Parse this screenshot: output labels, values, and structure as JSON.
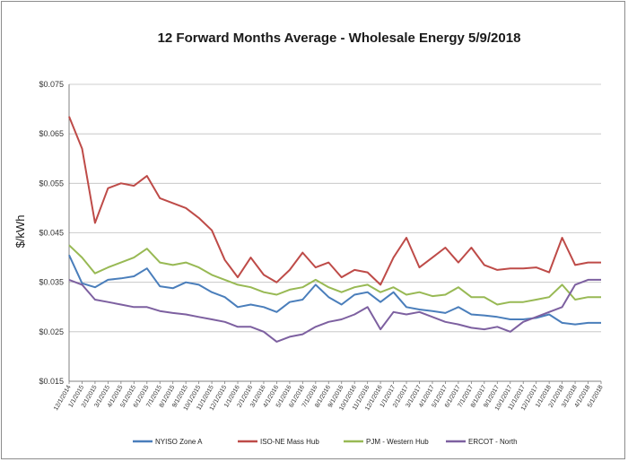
{
  "chart_data": {
    "type": "line",
    "title": "12 Forward Months Average - Wholesale Energy 5/9/2018",
    "xlabel": "",
    "ylabel": "$/kWh",
    "ylim": [
      0.015,
      0.075
    ],
    "yticks": [
      "$0.015",
      "$0.025",
      "$0.035",
      "$0.045",
      "$0.055",
      "$0.065",
      "$0.075"
    ],
    "grid": "horizontal",
    "legend_position": "bottom",
    "categories": [
      "12/1/2014",
      "1/1/2015",
      "2/1/2015",
      "3/1/2015",
      "4/1/2015",
      "5/1/2015",
      "6/1/2015",
      "7/1/2015",
      "8/1/2015",
      "9/1/2015",
      "10/1/2015",
      "11/1/2015",
      "12/1/2015",
      "1/1/2016",
      "2/1/2016",
      "3/1/2016",
      "4/1/2016",
      "5/1/2016",
      "6/1/2016",
      "7/1/2016",
      "8/1/2016",
      "9/1/2016",
      "10/1/2016",
      "11/1/2016",
      "12/1/2016",
      "1/1/2017",
      "2/1/2017",
      "3/1/2017",
      "4/1/2017",
      "5/1/2017",
      "6/1/2017",
      "7/1/2017",
      "8/1/2017",
      "9/1/2017",
      "10/1/2017",
      "11/1/2017",
      "12/1/2017",
      "1/1/2018",
      "2/1/2018",
      "3/1/2018",
      "4/1/2018",
      "5/1/2018"
    ],
    "series": [
      {
        "name": "NYISO Zone A",
        "color": "#4a7ebb",
        "values": [
          0.0405,
          0.0348,
          0.034,
          0.0355,
          0.0358,
          0.0362,
          0.0378,
          0.0342,
          0.0338,
          0.035,
          0.0345,
          0.033,
          0.032,
          0.03,
          0.0305,
          0.03,
          0.029,
          0.031,
          0.0315,
          0.0345,
          0.032,
          0.0305,
          0.0325,
          0.033,
          0.031,
          0.033,
          0.03,
          0.0295,
          0.0292,
          0.0288,
          0.03,
          0.0285,
          0.0283,
          0.028,
          0.0275,
          0.0275,
          0.0278,
          0.0285,
          0.0268,
          0.0265,
          0.0268,
          0.0268
        ]
      },
      {
        "name": "ISO-NE Mass Hub",
        "color": "#be4b48",
        "values": [
          0.0685,
          0.062,
          0.047,
          0.054,
          0.055,
          0.0545,
          0.0565,
          0.052,
          0.051,
          0.05,
          0.048,
          0.0455,
          0.0395,
          0.036,
          0.04,
          0.0365,
          0.035,
          0.0375,
          0.041,
          0.038,
          0.039,
          0.036,
          0.0375,
          0.037,
          0.0345,
          0.04,
          0.044,
          0.038,
          0.04,
          0.042,
          0.039,
          0.042,
          0.0385,
          0.0375,
          0.0378,
          0.0378,
          0.038,
          0.037,
          0.044,
          0.0385,
          0.039,
          0.039
        ]
      },
      {
        "name": "PJM - Western Hub",
        "color": "#98b954",
        "values": [
          0.0425,
          0.04,
          0.0368,
          0.038,
          0.039,
          0.04,
          0.0418,
          0.039,
          0.0385,
          0.039,
          0.038,
          0.0365,
          0.0355,
          0.0345,
          0.034,
          0.033,
          0.0325,
          0.0335,
          0.034,
          0.0355,
          0.034,
          0.033,
          0.034,
          0.0345,
          0.033,
          0.034,
          0.0325,
          0.033,
          0.0322,
          0.0325,
          0.034,
          0.032,
          0.032,
          0.0305,
          0.031,
          0.031,
          0.0315,
          0.032,
          0.0345,
          0.0315,
          0.032,
          0.032
        ]
      },
      {
        "name": "ERCOT - North",
        "color": "#7d60a0",
        "values": [
          0.0355,
          0.0345,
          0.0315,
          0.031,
          0.0305,
          0.03,
          0.03,
          0.0292,
          0.0288,
          0.0285,
          0.028,
          0.0275,
          0.027,
          0.026,
          0.026,
          0.025,
          0.023,
          0.024,
          0.0245,
          0.026,
          0.027,
          0.0275,
          0.0285,
          0.03,
          0.0255,
          0.029,
          0.0285,
          0.029,
          0.028,
          0.027,
          0.0265,
          0.0258,
          0.0255,
          0.026,
          0.025,
          0.027,
          0.028,
          0.029,
          0.03,
          0.0345,
          0.0355,
          0.0355
        ]
      }
    ]
  }
}
